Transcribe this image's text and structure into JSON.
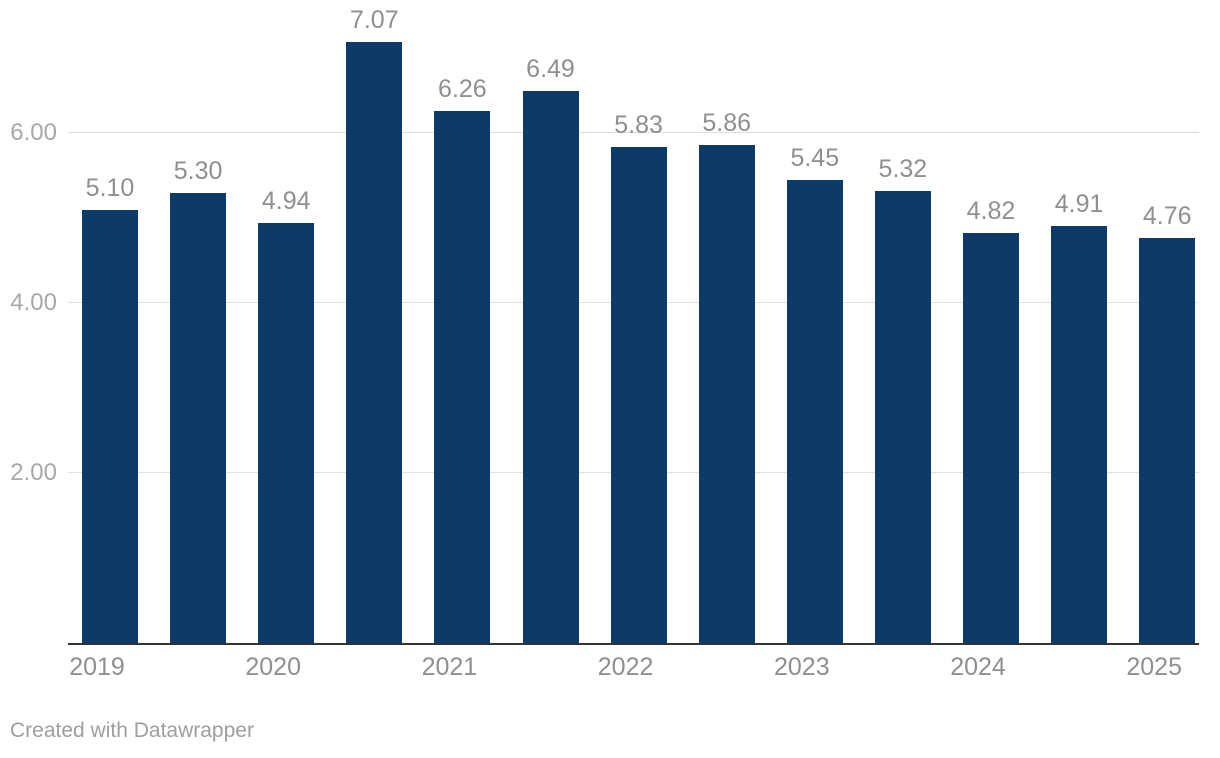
{
  "chart_data": {
    "type": "bar",
    "title": "",
    "xlabel": "",
    "ylabel": "",
    "values": [
      5.1,
      5.3,
      4.94,
      7.07,
      6.26,
      6.49,
      5.83,
      5.86,
      5.45,
      5.32,
      4.82,
      4.91,
      4.76
    ],
    "bar_labels": [
      "5.10",
      "5.30",
      "4.94",
      "7.07",
      "6.26",
      "6.49",
      "5.83",
      "5.86",
      "5.45",
      "5.32",
      "4.82",
      "4.91",
      "4.76"
    ],
    "x_ticks": [
      {
        "label": "2019",
        "bar_index": 0
      },
      {
        "label": "2020",
        "bar_index": 2
      },
      {
        "label": "2021",
        "bar_index": 4
      },
      {
        "label": "2022",
        "bar_index": 6
      },
      {
        "label": "2023",
        "bar_index": 8
      },
      {
        "label": "2024",
        "bar_index": 10
      },
      {
        "label": "2025",
        "bar_index": 12
      }
    ],
    "y_axis": {
      "min": 0,
      "max": 7.07,
      "ticks": [
        {
          "label": "2.00",
          "value": 2
        },
        {
          "label": "4.00",
          "value": 4
        },
        {
          "label": "6.00",
          "value": 6
        }
      ]
    },
    "grid": "horizontal",
    "legend_position": "none",
    "bar_color": "#0d3a66"
  },
  "colors": {
    "bar": "#0d3a66",
    "value_label": "#8f8f8f",
    "x_tick_label": "#8f8f8f",
    "y_tick_label": "#a8a8a8",
    "gridline": "#dedede",
    "axis_line": "#323232",
    "background": "#ffffff",
    "credit": "#9e9e9e"
  },
  "footer": {
    "credit_label": "Created with Datawrapper"
  }
}
